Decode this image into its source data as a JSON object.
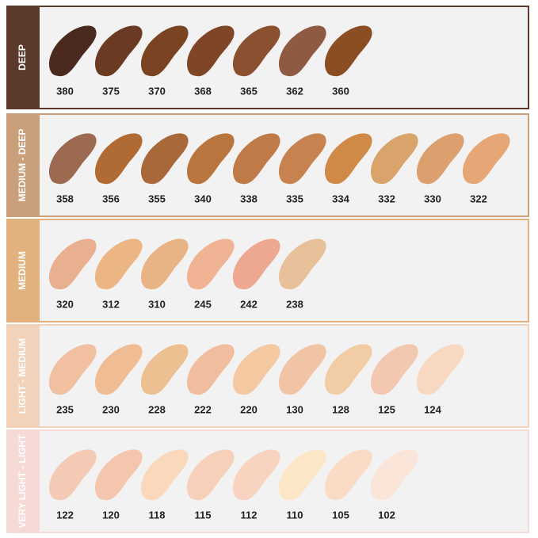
{
  "groups": [
    {
      "label": "DEEP",
      "color": "#5b3a2c",
      "shades": [
        {
          "code": "380",
          "color": "#4a2a1e"
        },
        {
          "code": "375",
          "color": "#6a3a22"
        },
        {
          "code": "370",
          "color": "#7a4422"
        },
        {
          "code": "368",
          "color": "#7e4626"
        },
        {
          "code": "365",
          "color": "#8a5030"
        },
        {
          "code": "362",
          "color": "#8e5a42"
        },
        {
          "code": "360",
          "color": "#8a4e22"
        }
      ]
    },
    {
      "label": "MEDIUM - DEEP",
      "color": "#c9a07a",
      "shades": [
        {
          "code": "358",
          "color": "#9c6a50"
        },
        {
          "code": "356",
          "color": "#b06a34"
        },
        {
          "code": "355",
          "color": "#a8683a"
        },
        {
          "code": "340",
          "color": "#b8753e"
        },
        {
          "code": "338",
          "color": "#c07a48"
        },
        {
          "code": "335",
          "color": "#c88250"
        },
        {
          "code": "334",
          "color": "#d08a48"
        },
        {
          "code": "332",
          "color": "#d8a46c"
        },
        {
          "code": "330",
          "color": "#dca06e"
        },
        {
          "code": "322",
          "color": "#e6a676"
        }
      ]
    },
    {
      "label": "MEDIUM",
      "color": "#e2b27e",
      "shades": [
        {
          "code": "320",
          "color": "#e8b08e"
        },
        {
          "code": "312",
          "color": "#ecb684"
        },
        {
          "code": "310",
          "color": "#e8b486"
        },
        {
          "code": "245",
          "color": "#f0b494"
        },
        {
          "code": "242",
          "color": "#eea892"
        },
        {
          "code": "238",
          "color": "#e8c09a"
        }
      ]
    },
    {
      "label": "LIGHT - MEDIUM",
      "color": "#f2d2b8",
      "shades": [
        {
          "code": "235",
          "color": "#f0c0a0"
        },
        {
          "code": "230",
          "color": "#f0bc94"
        },
        {
          "code": "228",
          "color": "#ecc090"
        },
        {
          "code": "222",
          "color": "#f0be9e"
        },
        {
          "code": "220",
          "color": "#f4c8a0"
        },
        {
          "code": "130",
          "color": "#f0c4a4"
        },
        {
          "code": "128",
          "color": "#f2cca4"
        },
        {
          "code": "125",
          "color": "#f2c8b0"
        },
        {
          "code": "124",
          "color": "#f8d8c0"
        }
      ]
    },
    {
      "label": "VERY LIGHT - LIGHT",
      "color": "#f5dad6",
      "shades": [
        {
          "code": "122",
          "color": "#f4cab4"
        },
        {
          "code": "120",
          "color": "#f4c6ae"
        },
        {
          "code": "118",
          "color": "#fad8bc"
        },
        {
          "code": "115",
          "color": "#f6d0b8"
        },
        {
          "code": "112",
          "color": "#f8d4c0"
        },
        {
          "code": "110",
          "color": "#fce6c8"
        },
        {
          "code": "105",
          "color": "#fadcc6"
        },
        {
          "code": "102",
          "color": "#fbe4d8"
        }
      ]
    }
  ]
}
